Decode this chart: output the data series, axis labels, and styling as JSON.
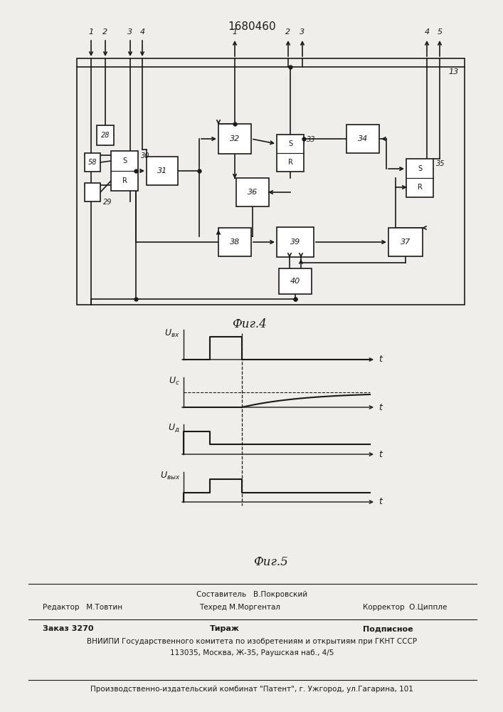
{
  "title": "1680460",
  "fig4_label": "Фиг.4",
  "fig5_label": "Фиг.5",
  "bg_color": "#f0eeea",
  "line_color": "#1a1a1a",
  "box_color": "#ffffff",
  "box_color2": "#f0eeea"
}
